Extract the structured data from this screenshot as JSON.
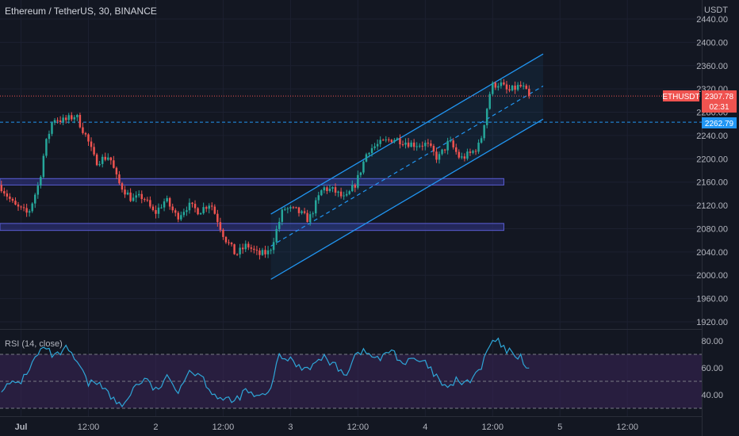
{
  "header": {
    "symbol_title": "Ethereum / TetherUS, 30, BINANCE",
    "currency": "USDT"
  },
  "price_badges": {
    "ticker": "ETHUSDT",
    "last_price": "2307.78",
    "countdown": "02:31",
    "level_price": "2262.79"
  },
  "rsi_panel": {
    "label": "RSI (14, close)"
  },
  "colors": {
    "background": "#131722",
    "bullish": "#26a69a",
    "bearish": "#ef5350",
    "channel": "#2196f3",
    "zone_fill": "#2a2e6e",
    "zone_border": "#5b5fd6",
    "rsi_line": "#2ea6d8",
    "rsi_band": "#3a2458",
    "price_badge": "#ef5350",
    "level_badge": "#2196f3"
  },
  "chart_data": [
    {
      "type": "candlestick",
      "title": "Ethereum / TetherUS, 30, BINANCE",
      "ylabel": "USDT",
      "ylim": [
        1900,
        2450
      ],
      "y_ticks": [
        1920,
        1960,
        2000,
        2040,
        2080,
        2120,
        2160,
        2200,
        2240,
        2280,
        2320,
        2360,
        2400,
        2440
      ],
      "x_ticks": [
        "Jul",
        "12:00",
        "2",
        "12:00",
        "3",
        "12:00",
        "4",
        "12:00",
        "5",
        "12:00"
      ],
      "x_tick_bars": [
        0,
        24,
        48,
        72,
        96,
        120,
        144,
        168,
        192,
        216
      ],
      "bar_count_visible": 250,
      "first_bar_index": -7,
      "last_price": 2307.78,
      "horizontal_level": 2262.79,
      "support_zones": [
        {
          "low": 2155,
          "high": 2166,
          "from_bar": -7,
          "to_bar": 172
        },
        {
          "low": 2077,
          "high": 2089,
          "from_bar": -7,
          "to_bar": 172
        }
      ],
      "ascending_channel": {
        "start_bar": 89,
        "end_bar": 186,
        "upper_start": 2105,
        "upper_end": 2380,
        "middle_start": 2050,
        "middle_end": 2325,
        "lower_start": 1993,
        "lower_end": 2268
      },
      "key_points": [
        [
          -7,
          2155
        ],
        [
          -2,
          2120
        ],
        [
          3,
          2105
        ],
        [
          7,
          2160
        ],
        [
          9,
          2220
        ],
        [
          12,
          2270
        ],
        [
          16,
          2265
        ],
        [
          20,
          2275
        ],
        [
          24,
          2235
        ],
        [
          27,
          2195
        ],
        [
          32,
          2205
        ],
        [
          35,
          2160
        ],
        [
          40,
          2130
        ],
        [
          44,
          2135
        ],
        [
          48,
          2105
        ],
        [
          52,
          2130
        ],
        [
          56,
          2100
        ],
        [
          60,
          2120
        ],
        [
          64,
          2110
        ],
        [
          68,
          2125
        ],
        [
          73,
          2065
        ],
        [
          77,
          2035
        ],
        [
          81,
          2052
        ],
        [
          85,
          2035
        ],
        [
          89,
          2040
        ],
        [
          94,
          2115
        ],
        [
          99,
          2110
        ],
        [
          103,
          2095
        ],
        [
          108,
          2150
        ],
        [
          112,
          2145
        ],
        [
          116,
          2130
        ],
        [
          120,
          2160
        ],
        [
          124,
          2215
        ],
        [
          128,
          2225
        ],
        [
          133,
          2235
        ],
        [
          137,
          2230
        ],
        [
          140,
          2225
        ],
        [
          145,
          2225
        ],
        [
          149,
          2200
        ],
        [
          153,
          2230
        ],
        [
          157,
          2200
        ],
        [
          161,
          2210
        ],
        [
          164,
          2225
        ],
        [
          166,
          2275
        ],
        [
          168,
          2325
        ],
        [
          171,
          2330
        ],
        [
          174,
          2315
        ],
        [
          178,
          2325
        ],
        [
          180,
          2320
        ],
        [
          181,
          2307.78
        ]
      ]
    },
    {
      "type": "line",
      "title": "RSI (14, close)",
      "ylim": [
        25,
        85
      ],
      "y_ticks": [
        40,
        60,
        80
      ],
      "bands": [
        30,
        50,
        70
      ],
      "key_points": [
        [
          -7,
          45
        ],
        [
          0,
          50
        ],
        [
          6,
          70
        ],
        [
          8,
          75
        ],
        [
          12,
          68
        ],
        [
          16,
          74
        ],
        [
          20,
          64
        ],
        [
          24,
          48
        ],
        [
          28,
          50
        ],
        [
          32,
          38
        ],
        [
          36,
          31
        ],
        [
          40,
          45
        ],
        [
          44,
          52
        ],
        [
          48,
          43
        ],
        [
          52,
          52
        ],
        [
          56,
          44
        ],
        [
          60,
          58
        ],
        [
          64,
          55
        ],
        [
          68,
          42
        ],
        [
          72,
          36
        ],
        [
          76,
          35
        ],
        [
          80,
          43
        ],
        [
          84,
          38
        ],
        [
          88,
          40
        ],
        [
          92,
          68
        ],
        [
          96,
          66
        ],
        [
          100,
          60
        ],
        [
          104,
          62
        ],
        [
          108,
          68
        ],
        [
          112,
          61
        ],
        [
          116,
          56
        ],
        [
          118,
          65
        ],
        [
          120,
          73
        ],
        [
          124,
          70
        ],
        [
          128,
          66
        ],
        [
          132,
          74
        ],
        [
          136,
          63
        ],
        [
          140,
          66
        ],
        [
          144,
          63
        ],
        [
          148,
          53
        ],
        [
          152,
          43
        ],
        [
          155,
          52
        ],
        [
          158,
          47
        ],
        [
          161,
          53
        ],
        [
          164,
          60
        ],
        [
          166,
          72
        ],
        [
          168,
          80
        ],
        [
          170,
          79
        ],
        [
          172,
          74
        ],
        [
          175,
          71
        ],
        [
          178,
          68
        ],
        [
          181,
          59
        ]
      ]
    }
  ]
}
